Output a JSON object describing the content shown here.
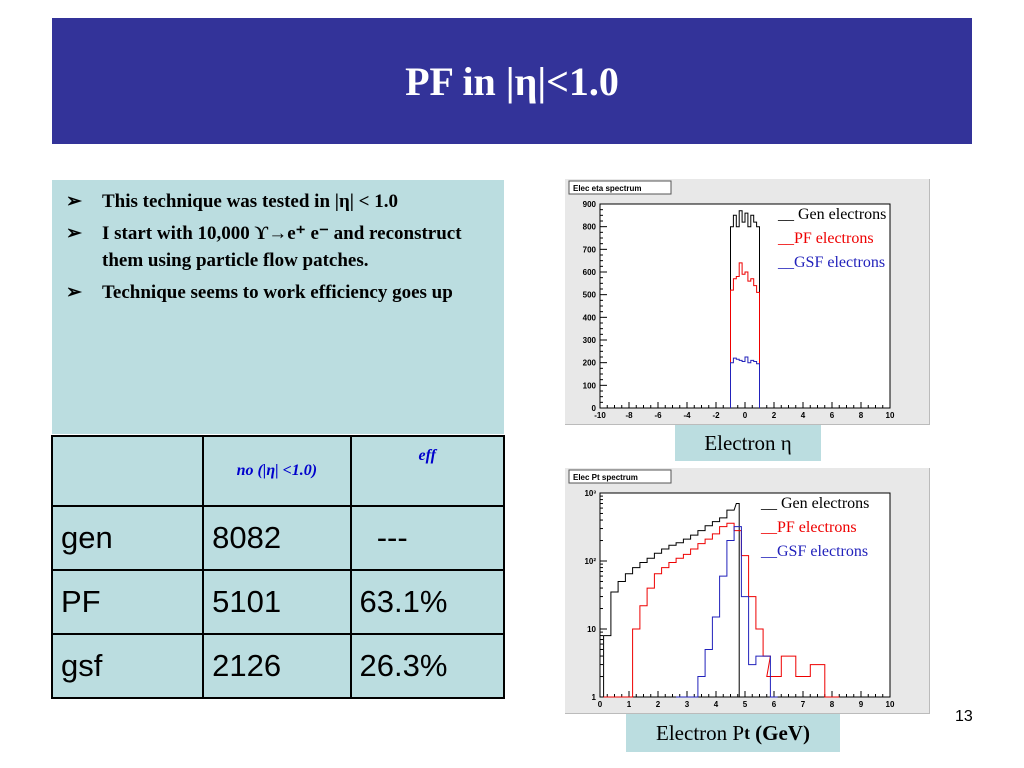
{
  "title": "PF in |η|<1.0",
  "bullets": [
    "This technique was  tested in |η| < 1.0",
    "I start with 10,000 ϒ→e⁺ e⁻ and reconstruct them using particle flow patches.",
    "Technique seems to work efficiency goes up"
  ],
  "bullet_marker": "➢",
  "table": {
    "headers": [
      "",
      "no (|η| <1.0)",
      "eff"
    ],
    "rows": [
      [
        "gen",
        "8082",
        "  ---"
      ],
      [
        "PF",
        "5101",
        "63.1%"
      ],
      [
        "gsf",
        "2126",
        "26.3%"
      ]
    ]
  },
  "legend_labels": [
    "__ Gen electrons",
    "__PF electrons",
    "__GSF electrons"
  ],
  "colors": {
    "title_bg": "#333399",
    "box_bg": "#bbdde0",
    "gen": "#000000",
    "pf": "#ee0000",
    "gsf": "#2222bb"
  },
  "chart_data": [
    {
      "type": "line",
      "title": "Elec eta spectrum",
      "caption": "Electron η",
      "xlim": [
        -10,
        10
      ],
      "ylim": [
        0,
        900
      ],
      "xticks": [
        -10,
        -8,
        -6,
        -4,
        -2,
        0,
        2,
        4,
        6,
        8,
        10
      ],
      "yticks": [
        0,
        100,
        200,
        300,
        400,
        500,
        600,
        700,
        800,
        900
      ],
      "series": [
        {
          "name": "Gen electrons",
          "x": [
            -0.9,
            -0.7,
            -0.5,
            -0.3,
            -0.1,
            0.1,
            0.3,
            0.5,
            0.7,
            0.9
          ],
          "values": [
            800,
            850,
            800,
            870,
            820,
            860,
            800,
            850,
            820,
            800
          ]
        },
        {
          "name": "PF electrons",
          "x": [
            -0.9,
            -0.7,
            -0.5,
            -0.3,
            -0.1,
            0.1,
            0.3,
            0.5,
            0.7,
            0.9
          ],
          "values": [
            520,
            570,
            580,
            640,
            590,
            600,
            560,
            570,
            540,
            510
          ]
        },
        {
          "name": "GSF electrons",
          "x": [
            -0.9,
            -0.7,
            -0.5,
            -0.3,
            -0.1,
            0.1,
            0.3,
            0.5,
            0.7,
            0.9
          ],
          "values": [
            200,
            220,
            215,
            210,
            205,
            225,
            200,
            210,
            205,
            195
          ]
        }
      ]
    },
    {
      "type": "line",
      "title": "Elec Pt spectrum",
      "caption_main": "Electron P",
      "caption_sub": "t",
      "caption_unit": "(GeV)",
      "xlim": [
        0,
        10
      ],
      "ylim": [
        1,
        1000
      ],
      "yscale": "log",
      "xticks": [
        0,
        1,
        2,
        3,
        4,
        5,
        6,
        7,
        8,
        9,
        10
      ],
      "ytick_labels": [
        "1",
        "10",
        "10²",
        "10³"
      ],
      "series": [
        {
          "name": "Gen electrons",
          "x": [
            0.25,
            0.5,
            0.75,
            1.0,
            1.25,
            1.5,
            1.75,
            2.0,
            2.25,
            2.5,
            2.75,
            3.0,
            3.25,
            3.5,
            3.75,
            4.0,
            4.25,
            4.5,
            4.75,
            4.85
          ],
          "values": [
            8,
            35,
            50,
            65,
            80,
            95,
            110,
            130,
            150,
            170,
            185,
            210,
            240,
            280,
            330,
            380,
            430,
            560,
            700,
            1
          ]
        },
        {
          "name": "PF electrons",
          "x": [
            0.25,
            0.5,
            0.75,
            1.0,
            1.25,
            1.5,
            1.75,
            2.0,
            2.25,
            2.5,
            2.75,
            3.0,
            3.25,
            3.5,
            3.75,
            4.0,
            4.25,
            4.5,
            4.75,
            5.0,
            5.25,
            5.5,
            5.75,
            6.0,
            6.5,
            7.0,
            7.5,
            8.0
          ],
          "values": [
            1,
            1,
            1,
            1,
            10,
            22,
            40,
            65,
            80,
            95,
            110,
            125,
            150,
            180,
            210,
            250,
            320,
            360,
            280,
            120,
            30,
            10,
            4,
            2,
            4,
            2,
            3,
            1
          ]
        },
        {
          "name": "GSF electrons",
          "x": [
            2.75,
            3.0,
            3.25,
            3.5,
            3.75,
            4.0,
            4.25,
            4.5,
            4.75,
            5.0,
            5.25,
            5.5,
            5.75,
            6.0
          ],
          "values": [
            1,
            1,
            1,
            2,
            5,
            15,
            60,
            200,
            320,
            30,
            3,
            4,
            4,
            1
          ]
        }
      ]
    }
  ],
  "page_number": "13"
}
